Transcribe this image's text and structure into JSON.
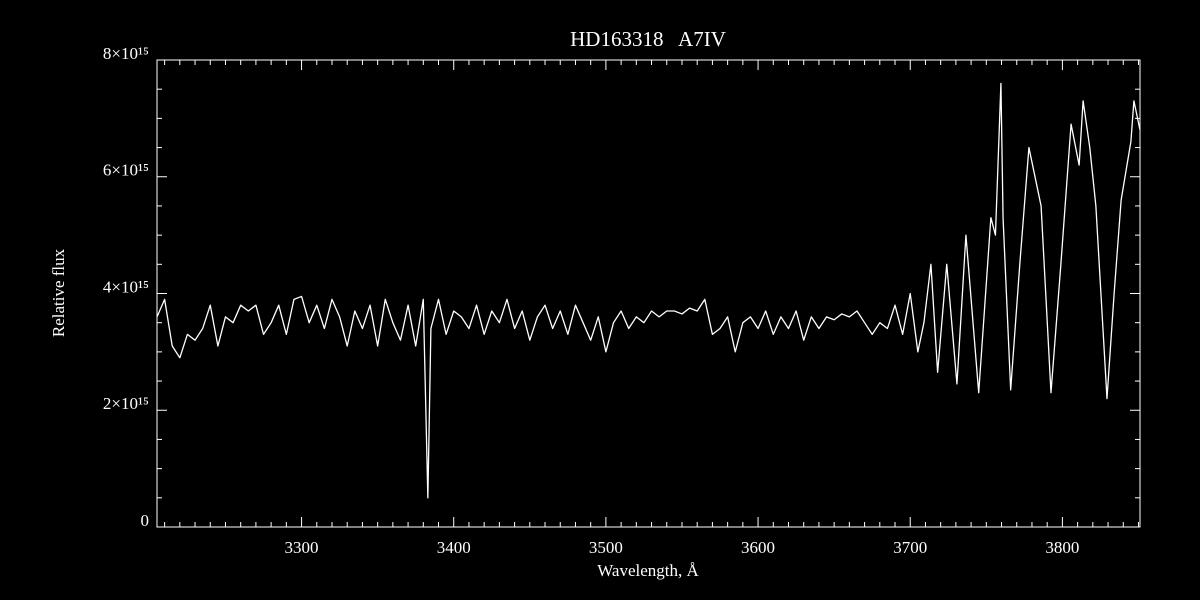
{
  "chart_data": {
    "type": "line",
    "title": "HD163318   A7IV",
    "xlabel": "Wavelength, Å",
    "ylabel": "Relative flux",
    "xlim": [
      3205,
      3851
    ],
    "ylim": [
      0,
      8000000000000000.0
    ],
    "xticks": [
      3300,
      3400,
      3500,
      3600,
      3700,
      3800
    ],
    "yticks": [
      0,
      {
        "value": 2000000000000000.0,
        "label": "2×10¹⁵"
      },
      {
        "value": 4000000000000000.0,
        "label": "4×10¹⁵"
      },
      {
        "value": 6000000000000000.0,
        "label": "6×10¹⁵"
      },
      {
        "value": 8000000000000000.0,
        "label": "8×10¹⁵"
      }
    ],
    "grid": false,
    "color": "#ffffff",
    "x": [
      3205,
      3210,
      3215,
      3220,
      3225,
      3230,
      3235,
      3240,
      3245,
      3250,
      3255,
      3260,
      3265,
      3270,
      3275,
      3280,
      3285,
      3290,
      3295,
      3300,
      3305,
      3310,
      3315,
      3320,
      3325,
      3330,
      3335,
      3340,
      3345,
      3350,
      3355,
      3360,
      3365,
      3370,
      3375,
      3380,
      3383,
      3385,
      3390,
      3395,
      3400,
      3405,
      3410,
      3415,
      3420,
      3425,
      3430,
      3435,
      3440,
      3445,
      3450,
      3455,
      3460,
      3465,
      3470,
      3475,
      3480,
      3485,
      3490,
      3495,
      3500,
      3505,
      3510,
      3515,
      3520,
      3525,
      3530,
      3535,
      3540,
      3545,
      3550,
      3555,
      3560,
      3565,
      3570,
      3575,
      3580,
      3585,
      3590,
      3595,
      3600,
      3605,
      3610,
      3615,
      3620,
      3625,
      3630,
      3635,
      3640,
      3645,
      3650,
      3655,
      3660,
      3665,
      3670,
      3675,
      3680,
      3685,
      3690,
      3695,
      3700,
      3705,
      3709,
      3713.6,
      3718,
      3724,
      3730.7,
      3736.6,
      3745,
      3753,
      3756,
      3759.6,
      3761,
      3766,
      3772,
      3778,
      3786,
      3792.5,
      3799,
      3805.7,
      3811,
      3813.6,
      3818,
      3822,
      3829.3,
      3834,
      3838.6,
      3845,
      3847,
      3851
    ],
    "values": [
      3600000000000000.0,
      3900000000000000.0,
      3100000000000000.0,
      2900000000000000.0,
      3300000000000000.0,
      3200000000000000.0,
      3400000000000000.0,
      3800000000000000.0,
      3100000000000000.0,
      3600000000000000.0,
      3500000000000000.0,
      3800000000000000.0,
      3700000000000000.0,
      3800000000000000.0,
      3300000000000000.0,
      3500000000000000.0,
      3800000000000000.0,
      3300000000000000.0,
      3900000000000000.0,
      3950000000000000.0,
      3500000000000000.0,
      3800000000000000.0,
      3400000000000000.0,
      3900000000000000.0,
      3600000000000000.0,
      3100000000000000.0,
      3700000000000000.0,
      3400000000000000.0,
      3800000000000000.0,
      3100000000000000.0,
      3900000000000000.0,
      3500000000000000.0,
      3200000000000000.0,
      3800000000000000.0,
      3100000000000000.0,
      3900000000000000.0,
      500000000000000.0,
      3400000000000000.0,
      3900000000000000.0,
      3300000000000000.0,
      3700000000000000.0,
      3600000000000000.0,
      3400000000000000.0,
      3800000000000000.0,
      3300000000000000.0,
      3700000000000000.0,
      3500000000000000.0,
      3900000000000000.0,
      3400000000000000.0,
      3700000000000000.0,
      3200000000000000.0,
      3600000000000000.0,
      3800000000000000.0,
      3400000000000000.0,
      3700000000000000.0,
      3300000000000000.0,
      3800000000000000.0,
      3500000000000000.0,
      3200000000000000.0,
      3600000000000000.0,
      3000000000000000.0,
      3500000000000000.0,
      3700000000000000.0,
      3400000000000000.0,
      3600000000000000.0,
      3500000000000000.0,
      3700000000000000.0,
      3600000000000000.0,
      3700000000000000.0,
      3700000000000000.0,
      3650000000000000.0,
      3750000000000000.0,
      3700000000000000.0,
      3900000000000000.0,
      3300000000000000.0,
      3400000000000000.0,
      3600000000000000.0,
      3000000000000000.0,
      3500000000000000.0,
      3600000000000000.0,
      3400000000000000.0,
      3700000000000000.0,
      3300000000000000.0,
      3600000000000000.0,
      3400000000000000.0,
      3700000000000000.0,
      3200000000000000.0,
      3600000000000000.0,
      3400000000000000.0,
      3600000000000000.0,
      3550000000000000.0,
      3650000000000000.0,
      3600000000000000.0,
      3700000000000000.0,
      3500000000000000.0,
      3300000000000000.0,
      3500000000000000.0,
      3400000000000000.0,
      3800000000000000.0,
      3300000000000000.0,
      4000000000000000.0,
      3000000000000000.0,
      3500000000000000.0,
      4500000000000000.0,
      2650000000000000.0,
      4500000000000000.0,
      2450000000000000.0,
      5000000000000000.0,
      2300000000000000.0,
      5300000000000000.0,
      5000000000000000.0,
      7600000000000000.0,
      5300000000000000.0,
      2350000000000000.0,
      4500000000000000.0,
      6500000000000000.0,
      5500000000000000.0,
      2300000000000000.0,
      4500000000000000.0,
      6900000000000000.0,
      6200000000000000.0,
      7300000000000000.0,
      6500000000000000.0,
      5500000000000000.0,
      2200000000000000.0,
      4000000000000000.0,
      5600000000000000.0,
      6600000000000000.0,
      7300000000000000.0,
      6800000000000000.0
    ]
  }
}
